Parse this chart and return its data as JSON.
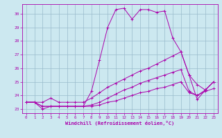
{
  "xlabel": "Windchill (Refroidissement éolien,°C)",
  "xlim": [
    -0.5,
    23.5
  ],
  "ylim": [
    22.7,
    30.7
  ],
  "xticks": [
    0,
    1,
    2,
    3,
    4,
    5,
    6,
    7,
    8,
    9,
    10,
    11,
    12,
    13,
    14,
    15,
    16,
    17,
    18,
    19,
    20,
    21,
    22,
    23
  ],
  "yticks": [
    23,
    24,
    25,
    26,
    27,
    28,
    29,
    30
  ],
  "background_color": "#cce8f0",
  "line_color": "#aa00aa",
  "grid_color": "#99bbcc",
  "line1_y": [
    23.5,
    23.5,
    23.0,
    23.2,
    23.2,
    23.2,
    23.2,
    23.2,
    24.3,
    26.6,
    29.0,
    30.3,
    30.4,
    29.6,
    30.3,
    30.3,
    30.1,
    30.2,
    28.2,
    27.2,
    25.5,
    23.7,
    24.4,
    25.0
  ],
  "line2_y": [
    23.5,
    23.5,
    23.5,
    23.8,
    23.5,
    23.5,
    23.5,
    23.5,
    23.8,
    24.2,
    24.6,
    24.9,
    25.2,
    25.5,
    25.8,
    26.0,
    26.3,
    26.6,
    26.9,
    27.2,
    25.5,
    24.8,
    24.4,
    25.0
  ],
  "line3_y": [
    23.5,
    23.5,
    23.2,
    23.2,
    23.2,
    23.2,
    23.2,
    23.2,
    23.3,
    23.5,
    23.8,
    24.1,
    24.4,
    24.6,
    24.9,
    25.1,
    25.3,
    25.5,
    25.7,
    25.9,
    24.3,
    24.0,
    24.4,
    25.0
  ],
  "line4_y": [
    23.5,
    23.5,
    23.2,
    23.2,
    23.2,
    23.2,
    23.2,
    23.2,
    23.2,
    23.3,
    23.5,
    23.6,
    23.8,
    24.0,
    24.2,
    24.3,
    24.5,
    24.6,
    24.8,
    25.0,
    24.2,
    24.0,
    24.3,
    24.5
  ]
}
